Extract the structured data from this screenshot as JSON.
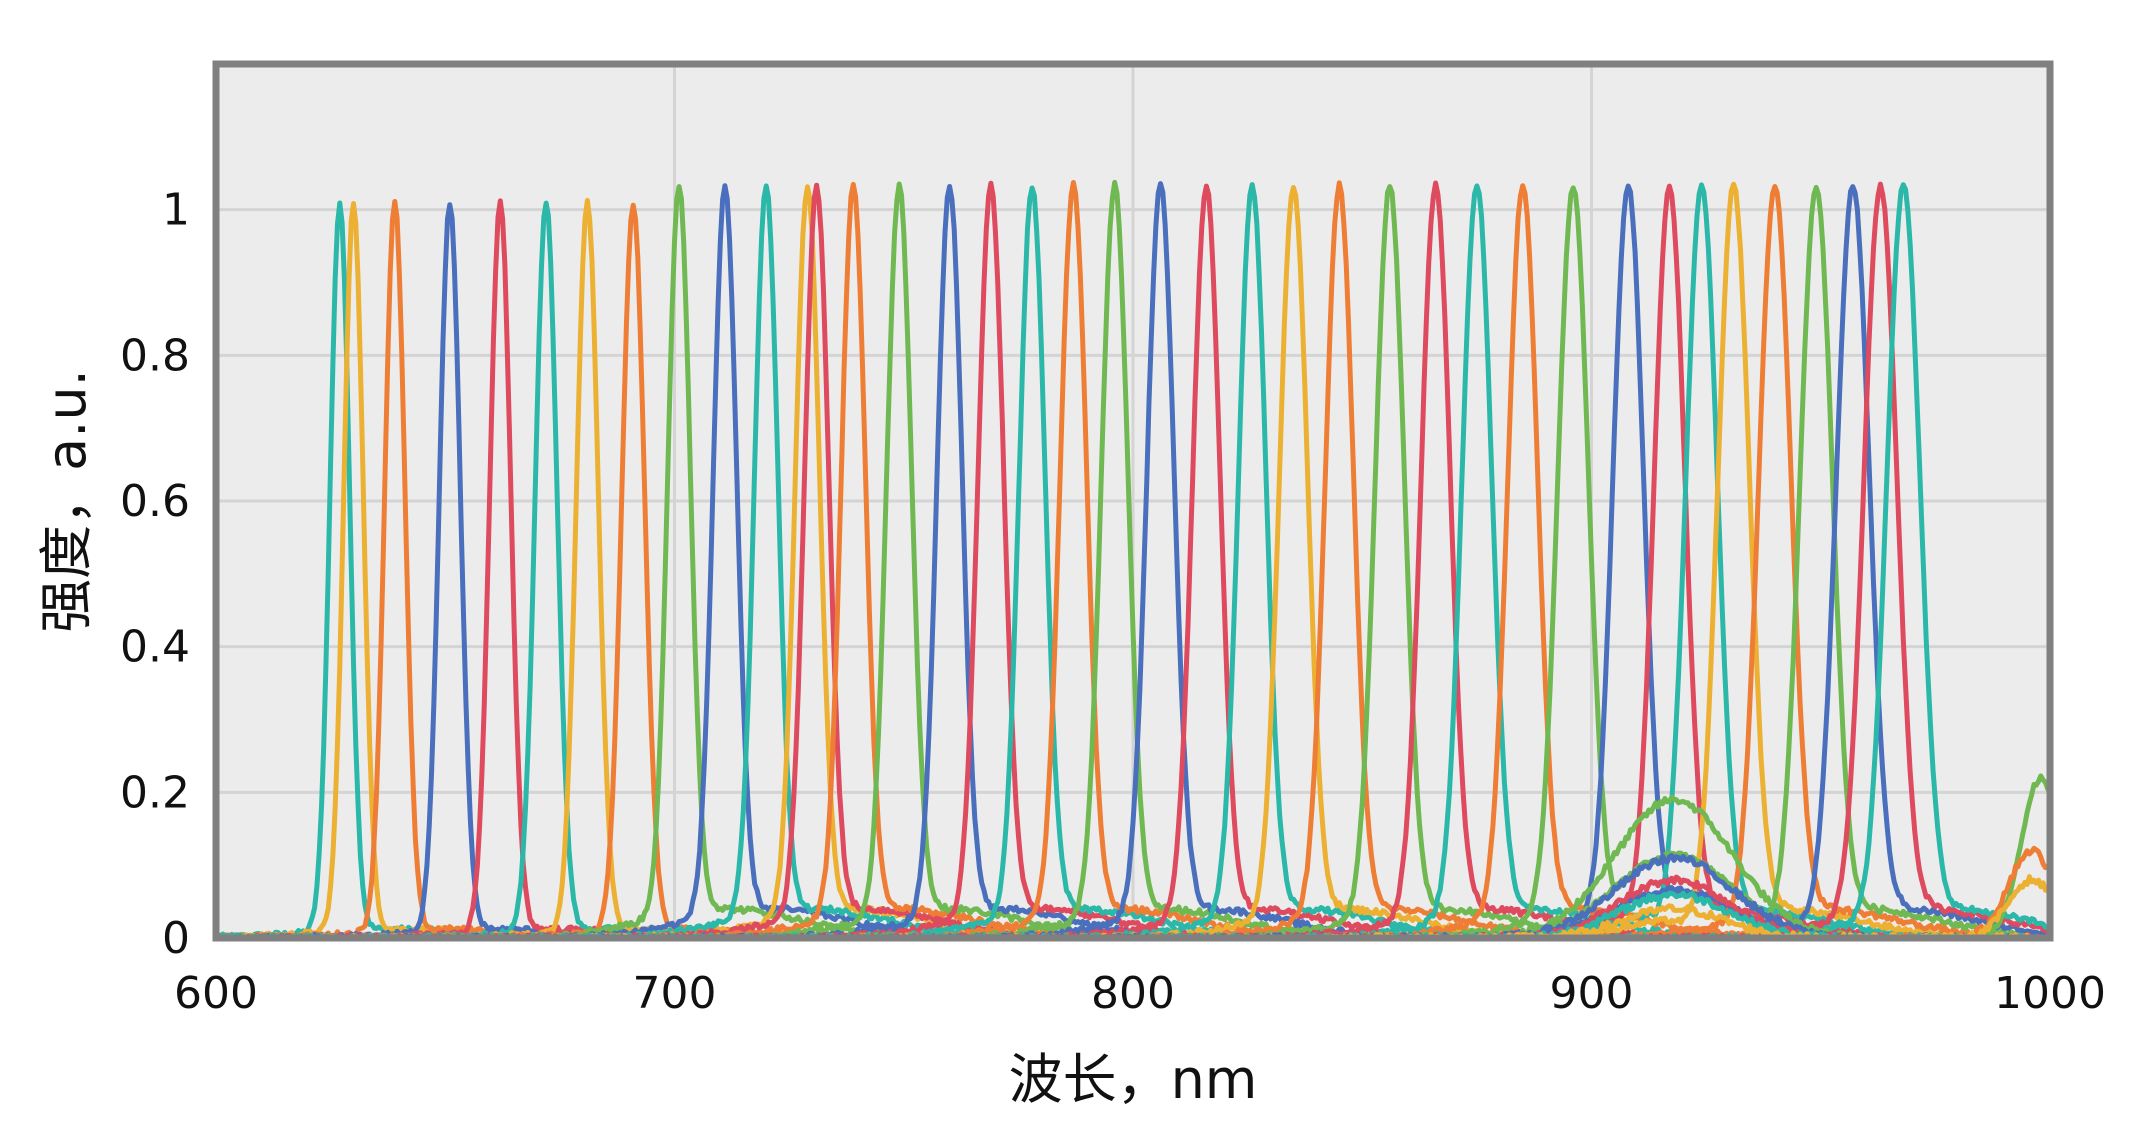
{
  "chart_data": {
    "type": "line",
    "title": "",
    "xlabel": "波长，nm",
    "ylabel": "强度，a.u.",
    "xlim": [
      600,
      1000
    ],
    "ylim": [
      0,
      1.2
    ],
    "xticks": [
      600,
      700,
      800,
      900,
      1000
    ],
    "xtick_labels": [
      "600",
      "700",
      "800",
      "900",
      "1000"
    ],
    "yticks": [
      0,
      0.2,
      0.4,
      0.6,
      0.8,
      1
    ],
    "ytick_labels": [
      "0",
      "0.2",
      "0.4",
      "0.6",
      "0.8",
      "1"
    ],
    "grid": true,
    "legend": "none",
    "plot_background": "#ececec",
    "frame_color": "#808080",
    "colors": {
      "teal": "#2bb8a8",
      "gold": "#ecb033",
      "orange": "#ee7e35",
      "blue": "#4a6fbc",
      "red": "#de4a5e",
      "green": "#6fb852"
    },
    "series": [
      {
        "color": "teal",
        "peak": 627,
        "fwhm": 5.0,
        "max": 1.0
      },
      {
        "color": "gold",
        "peak": 630,
        "fwhm": 5.0,
        "max": 1.0
      },
      {
        "color": "orange",
        "peak": 639,
        "fwhm": 5.2,
        "max": 1.0
      },
      {
        "color": "blue",
        "peak": 651,
        "fwhm": 5.4,
        "max": 1.0
      },
      {
        "color": "red",
        "peak": 662,
        "fwhm": 5.4,
        "max": 1.0
      },
      {
        "color": "teal",
        "peak": 672,
        "fwhm": 5.6,
        "max": 1.0
      },
      {
        "color": "gold",
        "peak": 681,
        "fwhm": 5.6,
        "max": 1.0
      },
      {
        "color": "orange",
        "peak": 691,
        "fwhm": 5.8,
        "max": 1.0
      },
      {
        "color": "green",
        "peak": 701,
        "fwhm": 5.8,
        "max": 1.0
      },
      {
        "color": "blue",
        "peak": 711,
        "fwhm": 6.0,
        "max": 1.0
      },
      {
        "color": "teal",
        "peak": 720,
        "fwhm": 6.0,
        "max": 1.0
      },
      {
        "color": "gold",
        "peak": 729,
        "fwhm": 6.2,
        "max": 1.0
      },
      {
        "color": "red",
        "peak": 731,
        "fwhm": 6.2,
        "max": 1.0
      },
      {
        "color": "orange",
        "peak": 739,
        "fwhm": 6.2,
        "max": 1.0
      },
      {
        "color": "green",
        "peak": 749,
        "fwhm": 6.4,
        "max": 1.0
      },
      {
        "color": "blue",
        "peak": 760,
        "fwhm": 6.4,
        "max": 1.0
      },
      {
        "color": "red",
        "peak": 769,
        "fwhm": 6.6,
        "max": 1.0
      },
      {
        "color": "teal",
        "peak": 778,
        "fwhm": 6.6,
        "max": 1.0
      },
      {
        "color": "orange",
        "peak": 787,
        "fwhm": 6.8,
        "max": 1.0
      },
      {
        "color": "green",
        "peak": 796,
        "fwhm": 6.8,
        "max": 1.0
      },
      {
        "color": "blue",
        "peak": 806,
        "fwhm": 7.0,
        "max": 1.0
      },
      {
        "color": "red",
        "peak": 816,
        "fwhm": 7.0,
        "max": 1.0
      },
      {
        "color": "teal",
        "peak": 826,
        "fwhm": 7.0,
        "max": 1.0
      },
      {
        "color": "gold",
        "peak": 835,
        "fwhm": 7.2,
        "max": 1.0
      },
      {
        "color": "orange",
        "peak": 845,
        "fwhm": 7.2,
        "max": 1.0
      },
      {
        "color": "green",
        "peak": 856,
        "fwhm": 7.4,
        "max": 1.0
      },
      {
        "color": "red",
        "peak": 866,
        "fwhm": 7.4,
        "max": 1.0
      },
      {
        "color": "teal",
        "peak": 875,
        "fwhm": 7.6,
        "max": 1.0
      },
      {
        "color": "orange",
        "peak": 885,
        "fwhm": 7.6,
        "max": 1.0
      },
      {
        "color": "green",
        "peak": 896,
        "fwhm": 7.8,
        "max": 1.0
      },
      {
        "color": "blue",
        "peak": 908,
        "fwhm": 7.8,
        "max": 1.0
      },
      {
        "color": "red",
        "peak": 917,
        "fwhm": 7.8,
        "max": 1.0
      },
      {
        "color": "teal",
        "peak": 924,
        "fwhm": 8.0,
        "max": 1.0
      },
      {
        "color": "gold",
        "peak": 931,
        "fwhm": 8.0,
        "max": 1.0
      },
      {
        "color": "orange",
        "peak": 940,
        "fwhm": 8.2,
        "max": 1.0
      },
      {
        "color": "green",
        "peak": 949,
        "fwhm": 8.2,
        "max": 1.0
      },
      {
        "color": "blue",
        "peak": 957,
        "fwhm": 8.4,
        "max": 1.0
      },
      {
        "color": "red",
        "peak": 963,
        "fwhm": 8.4,
        "max": 1.0
      },
      {
        "color": "teal",
        "peak": 968,
        "fwhm": 8.4,
        "max": 1.0
      }
    ],
    "secondary_humps": [
      {
        "color": "green",
        "center": 918,
        "fwhm": 30,
        "height": 0.19
      },
      {
        "color": "blue",
        "center": 918,
        "fwhm": 30,
        "height": 0.11
      },
      {
        "color": "red",
        "center": 918,
        "fwhm": 28,
        "height": 0.08
      },
      {
        "color": "teal",
        "center": 918,
        "fwhm": 28,
        "height": 0.06
      },
      {
        "color": "gold",
        "center": 918,
        "fwhm": 26,
        "height": 0.04
      },
      {
        "color": "green",
        "center": 998,
        "fwhm": 10,
        "height": 0.22
      },
      {
        "color": "orange",
        "center": 996,
        "fwhm": 12,
        "height": 0.12
      },
      {
        "color": "gold",
        "center": 996,
        "fwhm": 12,
        "height": 0.08
      }
    ]
  }
}
